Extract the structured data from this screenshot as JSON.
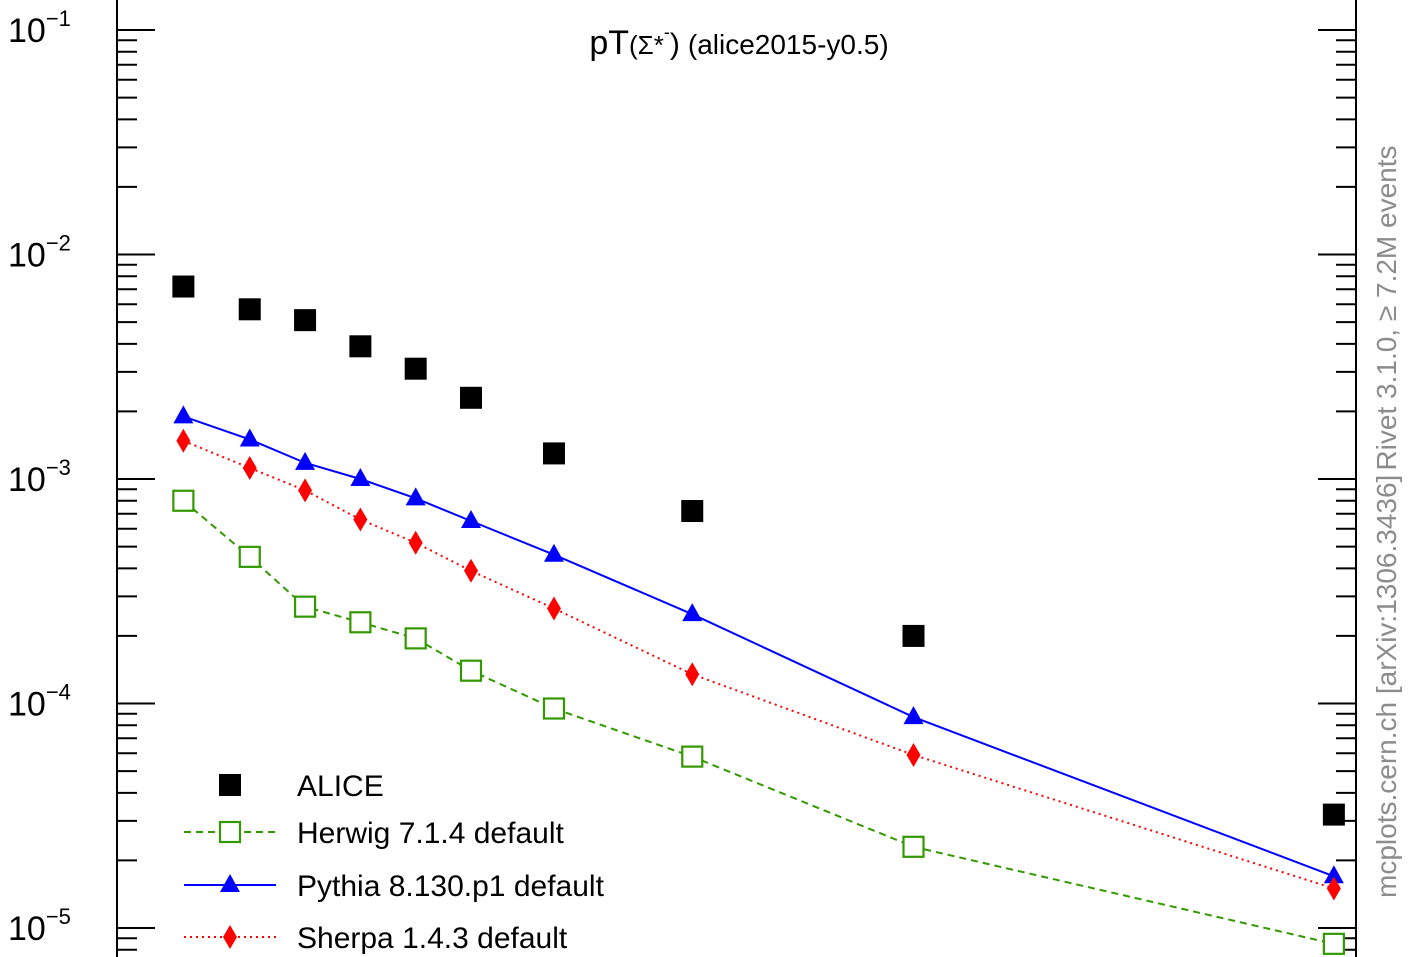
{
  "chart_data": {
    "type": "scatter",
    "title": {
      "prefix": "pT",
      "particle": "(Σ*",
      "charge": "-",
      "close": ")",
      "suffix": "(alice2015-y0.5)"
    },
    "xlabel": "",
    "ylabel": "",
    "y_scale": "log",
    "ylim": [
      1e-05,
      0.1
    ],
    "xlim": [
      0.2,
      5.8
    ],
    "y_tick_labels": [
      {
        "value": 0.1,
        "base": "10",
        "exp": "−1"
      },
      {
        "value": 0.01,
        "base": "10",
        "exp": "−2"
      },
      {
        "value": 0.001,
        "base": "10",
        "exp": "−3"
      },
      {
        "value": 0.0001,
        "base": "10",
        "exp": "−4"
      },
      {
        "value": 1e-05,
        "base": "10",
        "exp": "−5"
      }
    ],
    "x": [
      0.5,
      0.8,
      1.05,
      1.3,
      1.55,
      1.8,
      2.175,
      2.8,
      3.8,
      5.7
    ],
    "series": [
      {
        "name": "ALICE",
        "style": "data",
        "color": "#000000",
        "marker": "filled-square",
        "values": [
          0.0072,
          0.0057,
          0.0051,
          0.0039,
          0.0031,
          0.0023,
          0.0013,
          0.00072,
          0.0002,
          3.2e-05
        ]
      },
      {
        "name": "Herwig 7.1.4 default",
        "style": "dashed",
        "color": "#339900",
        "marker": "open-square",
        "values": [
          0.0008,
          0.00045,
          0.00027,
          0.00023,
          0.000195,
          0.00014,
          9.5e-05,
          5.8e-05,
          2.3e-05,
          8.5e-06
        ]
      },
      {
        "name": "Pythia 8.130.p1 default",
        "style": "solid",
        "color": "#0000ff",
        "marker": "filled-triangle",
        "values": [
          0.0019,
          0.0015,
          0.00118,
          0.001,
          0.00082,
          0.00065,
          0.00046,
          0.00025,
          8.7e-05,
          1.7e-05
        ]
      },
      {
        "name": "Sherpa 1.4.3 default",
        "style": "dotted",
        "color": "#ff0000",
        "marker": "filled-diamond",
        "values": [
          0.00148,
          0.00112,
          0.00089,
          0.00066,
          0.00052,
          0.00039,
          0.000265,
          0.000135,
          5.9e-05,
          1.5e-05
        ]
      }
    ],
    "legend_position": "bottom-left",
    "grid": false
  },
  "side_labels": {
    "right_top": "Rivet 3.1.0, ≥ 7.2M events",
    "right_bottom": "mcplots.cern.ch [arXiv:1306.3436]"
  }
}
